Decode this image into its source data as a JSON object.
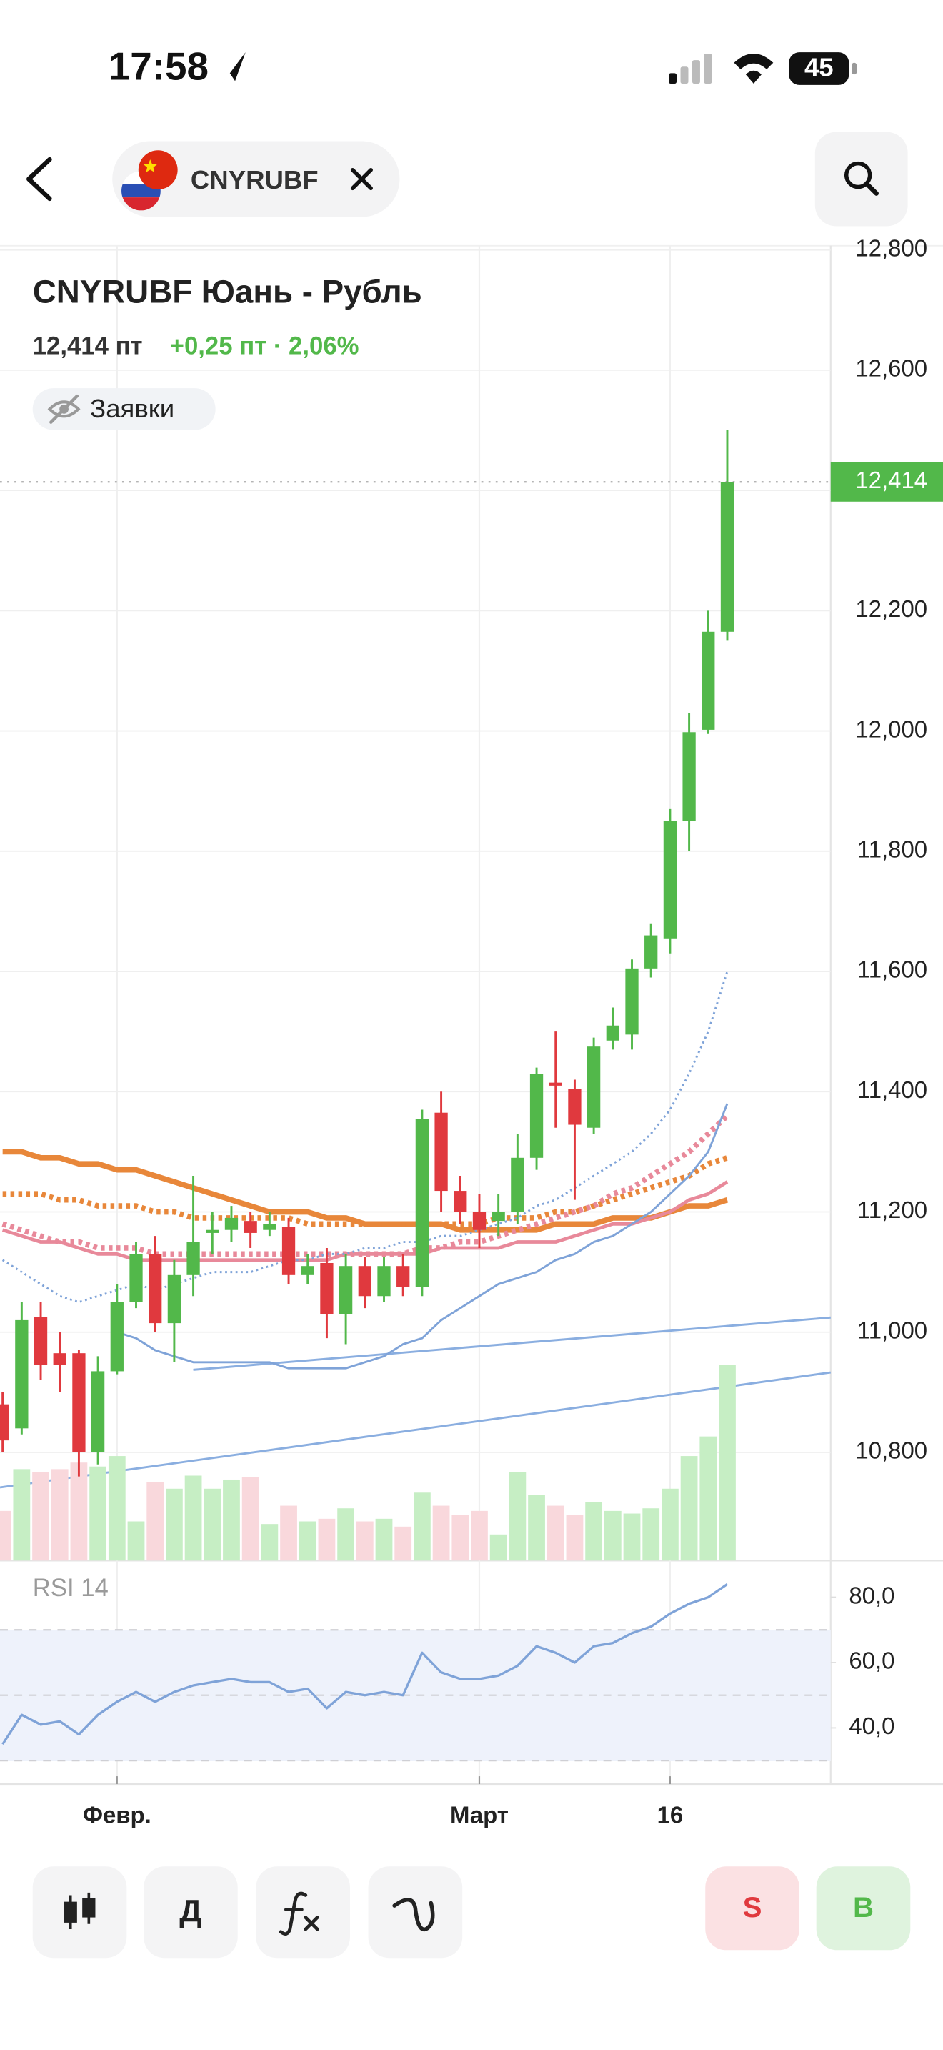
{
  "status_bar": {
    "time": "17:58",
    "battery": "45"
  },
  "header": {
    "ticker": "CNYRUBF"
  },
  "chart_data": [
    {
      "type": "candlestick",
      "title": "CNYRUBF Юань - Рубль",
      "price_text": "12,414 пт",
      "change_text": "+0,25 пт · 2,06%",
      "toggle_label": "Заявки",
      "categories": [
        null,
        null,
        null,
        null,
        null,
        null,
        "Февр.",
        null,
        null,
        null,
        null,
        null,
        null,
        null,
        null,
        null,
        null,
        null,
        null,
        null,
        null,
        null,
        null,
        null,
        null,
        "Март",
        null,
        null,
        null,
        null,
        null,
        null,
        null,
        null,
        null,
        "16",
        null,
        null,
        null
      ],
      "open": [
        10.88,
        10.84,
        11.025,
        10.965,
        10.965,
        10.8,
        10.935,
        11.05,
        11.13,
        11.015,
        11.095,
        11.165,
        11.17,
        11.185,
        11.17,
        11.175,
        11.095,
        11.115,
        11.03,
        11.11,
        11.06,
        11.11,
        11.075,
        11.365,
        11.235,
        11.2,
        11.185,
        11.2,
        11.29,
        11.415,
        11.405,
        11.34,
        11.485,
        11.495,
        11.605,
        11.655,
        11.85,
        12.002,
        12.165
      ],
      "high": [
        10.9,
        11.05,
        11.05,
        11.0,
        10.97,
        10.96,
        11.08,
        11.15,
        11.16,
        11.12,
        11.26,
        11.2,
        11.21,
        11.2,
        11.2,
        11.19,
        11.13,
        11.14,
        11.13,
        11.125,
        11.125,
        11.13,
        11.37,
        11.4,
        11.26,
        11.23,
        11.23,
        11.33,
        11.44,
        11.5,
        11.42,
        11.49,
        11.54,
        11.62,
        11.68,
        11.87,
        12.03,
        12.2,
        12.5
      ],
      "low": [
        10.8,
        10.83,
        10.92,
        10.9,
        10.76,
        10.78,
        10.93,
        11.04,
        11.0,
        10.95,
        11.06,
        11.13,
        11.15,
        11.14,
        11.16,
        11.08,
        11.08,
        10.99,
        10.98,
        11.04,
        11.05,
        11.06,
        11.06,
        11.2,
        11.18,
        11.14,
        11.16,
        11.18,
        11.27,
        11.34,
        11.22,
        11.33,
        11.47,
        11.47,
        11.59,
        11.63,
        11.8,
        11.995,
        12.15
      ],
      "close": [
        10.82,
        11.02,
        10.945,
        10.945,
        10.8,
        10.935,
        11.05,
        11.13,
        11.015,
        11.095,
        11.15,
        11.17,
        11.19,
        11.165,
        11.18,
        11.095,
        11.11,
        11.03,
        11.11,
        11.06,
        11.11,
        11.075,
        11.355,
        11.235,
        11.2,
        11.17,
        11.2,
        11.29,
        11.43,
        11.41,
        11.345,
        11.475,
        11.51,
        11.605,
        11.66,
        11.85,
        11.998,
        12.165,
        12.414
      ],
      "volume": [
        38,
        70,
        68,
        70,
        75,
        72,
        80,
        30,
        60,
        55,
        65,
        55,
        62,
        64,
        28,
        42,
        30,
        32,
        40,
        30,
        32,
        26,
        52,
        42,
        35,
        38,
        20,
        68,
        50,
        42,
        35,
        45,
        38,
        36,
        40,
        55,
        80,
        95,
        150
      ],
      "colors": {
        "up": "#52b84a",
        "down": "#e0393e",
        "volume_up": "#c6eec4",
        "volume_down": "#f9d8dc"
      },
      "overlays": [
        {
          "color": "#e8873a",
          "style": "solid",
          "weight": "heavy",
          "values": [
            11.3,
            11.3,
            11.29,
            11.29,
            11.28,
            11.28,
            11.27,
            11.27,
            11.26,
            11.25,
            11.24,
            11.23,
            11.22,
            11.21,
            11.2,
            11.2,
            11.2,
            11.19,
            11.19,
            11.18,
            11.18,
            11.18,
            11.18,
            11.18,
            11.17,
            11.17,
            11.17,
            11.17,
            11.17,
            11.18,
            11.18,
            11.18,
            11.19,
            11.19,
            11.19,
            11.2,
            11.21,
            11.21,
            11.22
          ]
        },
        {
          "color": "#e8873a",
          "style": "dotted",
          "weight": "heavy",
          "values": [
            11.23,
            11.23,
            11.23,
            11.22,
            11.22,
            11.21,
            11.21,
            11.21,
            11.2,
            11.2,
            11.19,
            11.19,
            11.19,
            11.19,
            11.19,
            11.19,
            11.18,
            11.18,
            11.18,
            11.18,
            11.18,
            11.18,
            11.18,
            11.18,
            11.18,
            11.18,
            11.19,
            11.19,
            11.19,
            11.2,
            11.2,
            11.21,
            11.22,
            11.23,
            11.24,
            11.25,
            11.26,
            11.28,
            11.29
          ]
        },
        {
          "color": "#e8899a",
          "style": "solid",
          "weight": "medium",
          "values": [
            11.17,
            11.16,
            11.15,
            11.15,
            11.14,
            11.13,
            11.13,
            11.12,
            11.12,
            11.12,
            11.12,
            11.12,
            11.12,
            11.12,
            11.12,
            11.12,
            11.12,
            11.12,
            11.13,
            11.13,
            11.13,
            11.13,
            11.13,
            11.14,
            11.14,
            11.14,
            11.14,
            11.15,
            11.15,
            11.15,
            11.16,
            11.17,
            11.18,
            11.18,
            11.19,
            11.2,
            11.22,
            11.23,
            11.25
          ]
        },
        {
          "color": "#e8899a",
          "style": "dotted",
          "weight": "heavy",
          "values": [
            11.18,
            11.17,
            11.16,
            11.15,
            11.15,
            11.14,
            11.14,
            11.14,
            11.13,
            11.13,
            11.13,
            11.13,
            11.13,
            11.13,
            11.13,
            11.13,
            11.13,
            11.13,
            11.13,
            11.13,
            11.13,
            11.13,
            11.14,
            11.14,
            11.15,
            11.15,
            11.16,
            11.17,
            11.18,
            11.19,
            11.2,
            11.21,
            11.23,
            11.24,
            11.26,
            11.28,
            11.3,
            11.33,
            11.36
          ]
        },
        {
          "color": "#7fa3d8",
          "style": "solid",
          "weight": "light",
          "values": [
            null,
            null,
            null,
            null,
            null,
            null,
            11.0,
            10.99,
            10.97,
            10.96,
            10.95,
            10.95,
            10.95,
            10.95,
            10.95,
            10.94,
            10.94,
            10.94,
            10.94,
            10.95,
            10.96,
            10.98,
            10.99,
            11.02,
            11.04,
            11.06,
            11.08,
            11.09,
            11.1,
            11.12,
            11.13,
            11.15,
            11.16,
            11.18,
            11.2,
            11.23,
            11.26,
            11.3,
            11.38
          ]
        },
        {
          "color": "#7fa3d8",
          "style": "dotted",
          "weight": "light",
          "values": [
            11.12,
            11.1,
            11.08,
            11.06,
            11.05,
            11.06,
            11.07,
            11.08,
            11.07,
            11.08,
            11.09,
            11.1,
            11.1,
            11.1,
            11.11,
            11.12,
            11.12,
            11.13,
            11.13,
            11.14,
            11.14,
            11.15,
            11.15,
            11.16,
            11.16,
            11.17,
            11.18,
            11.19,
            11.21,
            11.22,
            11.24,
            11.26,
            11.28,
            11.3,
            11.33,
            11.37,
            11.43,
            11.5,
            11.6
          ]
        }
      ],
      "ylim": [
        10.62,
        12.807
      ],
      "yticks": [
        {
          "value": 12.8,
          "label": "12,800"
        },
        {
          "value": 12.6,
          "label": "12,600"
        },
        {
          "value": 12.4,
          "label": "12,400"
        },
        {
          "value": 12.2,
          "label": "12,200"
        },
        {
          "value": 12.0,
          "label": "12,000"
        },
        {
          "value": 11.8,
          "label": "11,800"
        },
        {
          "value": 11.6,
          "label": "11,600"
        },
        {
          "value": 11.4,
          "label": "11,400"
        },
        {
          "value": 11.2,
          "label": "11,200"
        },
        {
          "value": 11.0,
          "label": "11,000"
        },
        {
          "value": 10.8,
          "label": "10,800"
        }
      ],
      "last_price": {
        "value": 12.414,
        "label": "12,414"
      },
      "grid": true
    },
    {
      "type": "line",
      "title": "RSI 14",
      "color": "#7fa3d8",
      "values": [
        35,
        44,
        41,
        42,
        38,
        44,
        48,
        51,
        48,
        51,
        53,
        54,
        55,
        54,
        54,
        51,
        52,
        46,
        51,
        50,
        51,
        50,
        63,
        57,
        55,
        55,
        56,
        59,
        65,
        63,
        60,
        65,
        66,
        69,
        71,
        75,
        78,
        80,
        84
      ],
      "ylim": [
        22.8,
        90
      ],
      "yticks": [
        {
          "value": 80,
          "label": "80,0"
        },
        {
          "value": 60,
          "label": "60,0"
        },
        {
          "value": 40,
          "label": "40,0"
        }
      ],
      "levels": [
        30,
        50,
        70
      ],
      "band_color": "#eef2fb"
    }
  ],
  "toolbar": {
    "period_label": "Д",
    "sell_label": "S",
    "buy_label": "B"
  }
}
